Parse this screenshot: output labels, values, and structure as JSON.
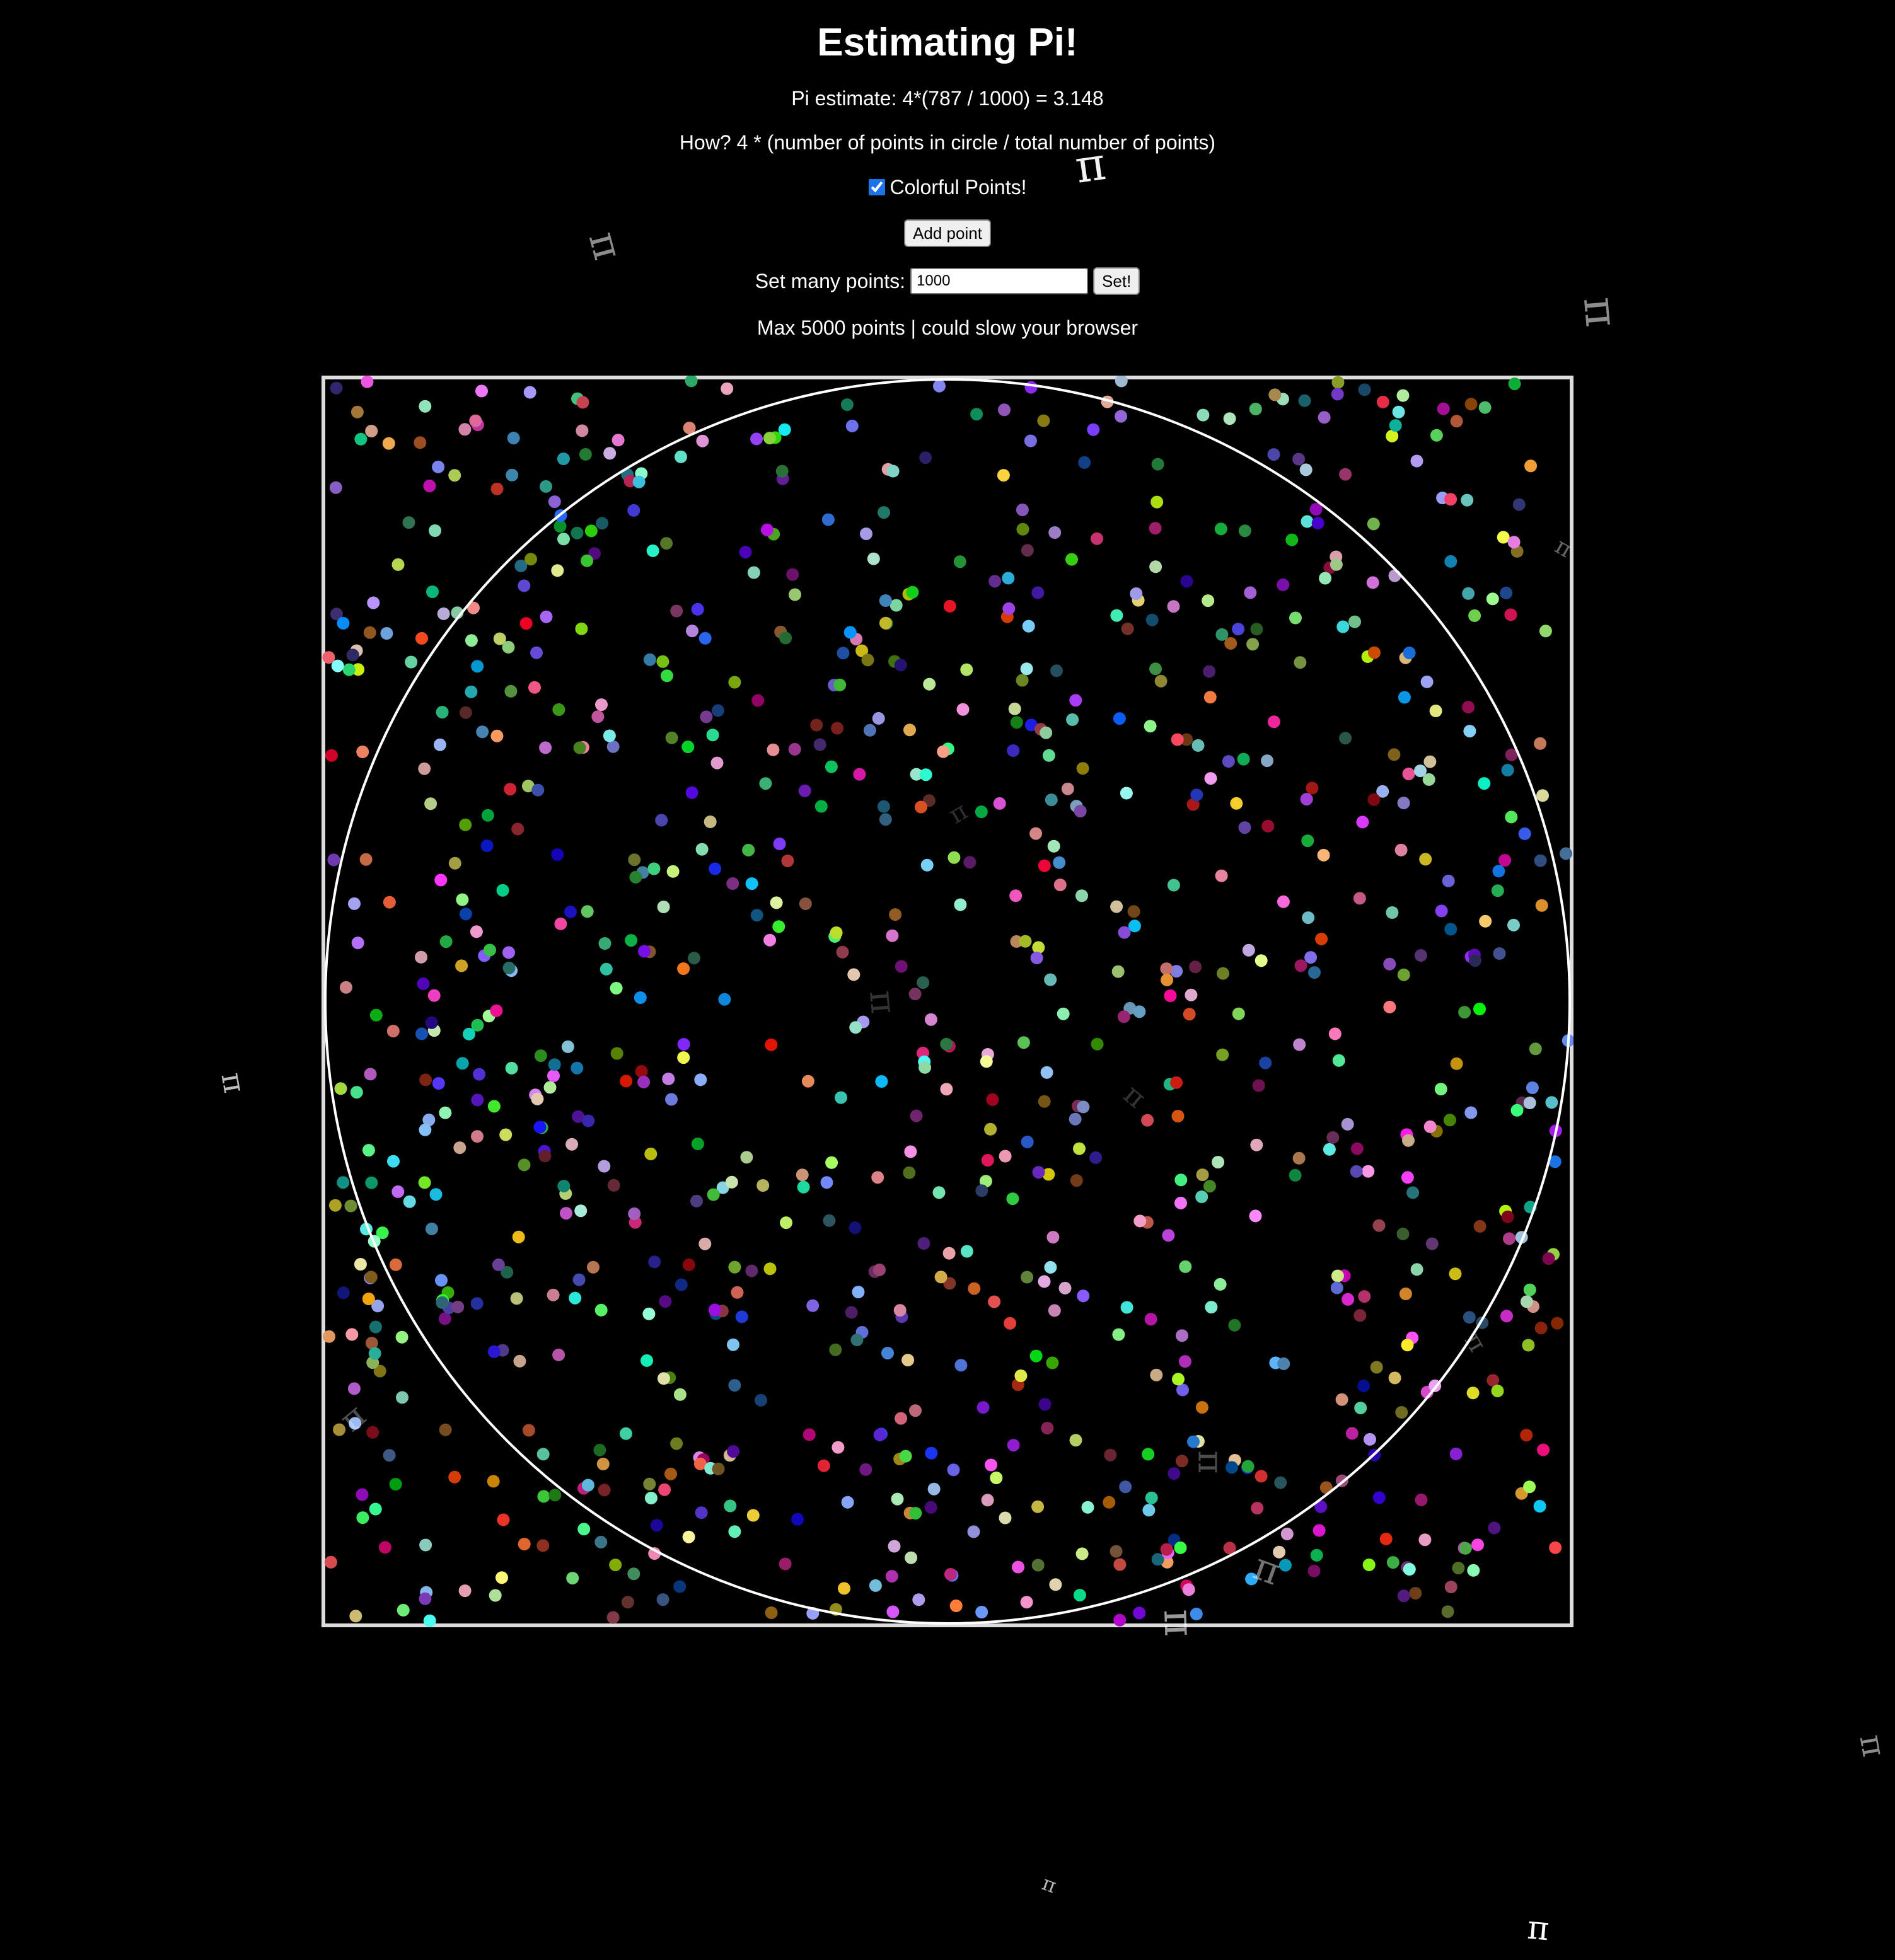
{
  "page": {
    "title": "Estimating Pi!",
    "estimate_text": "Pi estimate: 4*(787 / 1000) = 3.148",
    "how_text": "How? 4 * (number of points in circle / total number of points)",
    "colorful_label": "Colorful Points!",
    "colorful_checked": true,
    "add_point_label": "Add point",
    "set_many_label": "Set many points:",
    "set_many_value": "1000",
    "set_button_label": "Set!",
    "max_text": "Max 5000 points | could slow your browser"
  },
  "simulation": {
    "total_points": 1000,
    "points_in_circle": 787,
    "pi_estimate": 3.148
  },
  "decorations": {
    "symbol": "π"
  },
  "colors": {
    "background": "#000000",
    "foreground": "#ffffff",
    "square_border": "#dddddd",
    "circle_stroke": "#ffffff"
  }
}
